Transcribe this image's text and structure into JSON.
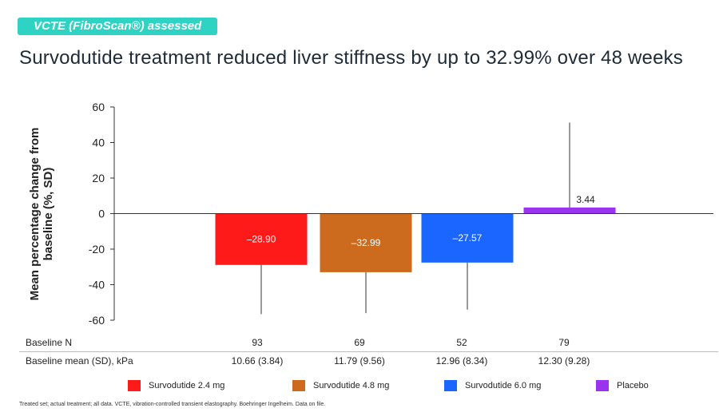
{
  "badge": "VCTE (FibroScan®) assessed",
  "title": "Survodutide treatment reduced liver stiffness by up to 32.99% over 48 weeks",
  "chart_data": {
    "type": "bar",
    "ylabel": "Mean percentage change from baseline (%, SD)",
    "ylim": [
      -60,
      60
    ],
    "yticks": [
      60,
      40,
      20,
      0,
      -20,
      -40,
      -60
    ],
    "grid": false,
    "series": [
      {
        "name": "Survodutide 2.4 mg",
        "value": -28.9,
        "label": "–28.90",
        "sd": 27.7,
        "color": "#ff1a1a",
        "label_color": "#ffffff"
      },
      {
        "name": "Survodutide 4.8 mg",
        "value": -32.99,
        "label": "–32.99",
        "sd": 23.0,
        "color": "#cc6a1d",
        "label_color": "#ffffff"
      },
      {
        "name": "Survodutide 6.0 mg",
        "value": -27.57,
        "label": "–27.57",
        "sd": 26.5,
        "color": "#1a66ff",
        "label_color": "#ffffff"
      },
      {
        "name": "Placebo",
        "value": 3.44,
        "label": "3.44",
        "sd": 47.8,
        "color": "#9933ee",
        "label_color": "#222222"
      }
    ],
    "legend_position": "bottom"
  },
  "table": {
    "rows": [
      {
        "label": "Baseline N",
        "values": [
          "93",
          "69",
          "52",
          "79"
        ]
      },
      {
        "label": "Baseline mean (SD), kPa",
        "values": [
          "10.66 (3.84)",
          "11.79 (9.56)",
          "12.96 (8.34)",
          "12.30 (9.28)"
        ]
      }
    ]
  },
  "footnote": "Treated set; actual treatment; all data. VCTE, vibration-controlled transient elastography. Boehringer Ingelheim. Data on file."
}
